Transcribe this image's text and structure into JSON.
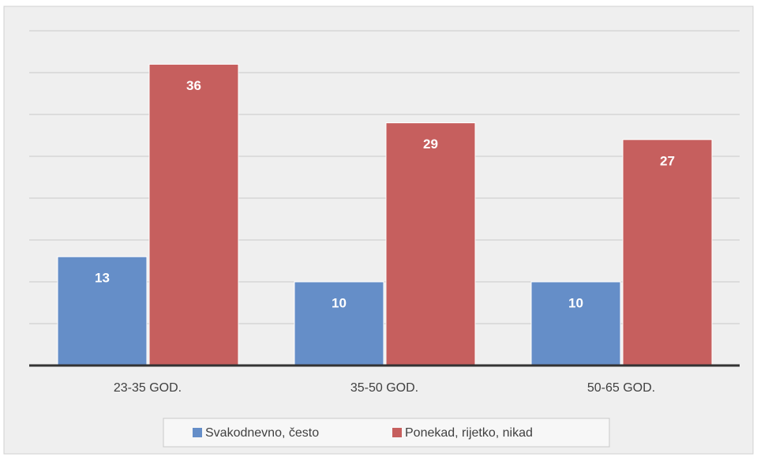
{
  "chart_data": {
    "type": "bar",
    "categories": [
      "23-35 GOD.",
      "35-50 GOD.",
      "50-65 GOD."
    ],
    "series": [
      {
        "name": "Svakodnevno, često",
        "color": "#658ec8",
        "values": [
          13,
          10,
          10
        ]
      },
      {
        "name": "Ponekad, rijetko, nikad",
        "color": "#c65f5e",
        "values": [
          36,
          29,
          27
        ]
      }
    ],
    "ylim": [
      0,
      40
    ],
    "yticks": [
      0,
      5,
      10,
      15,
      20,
      25,
      30,
      35,
      40
    ],
    "grid": true,
    "legend": "bottom"
  }
}
